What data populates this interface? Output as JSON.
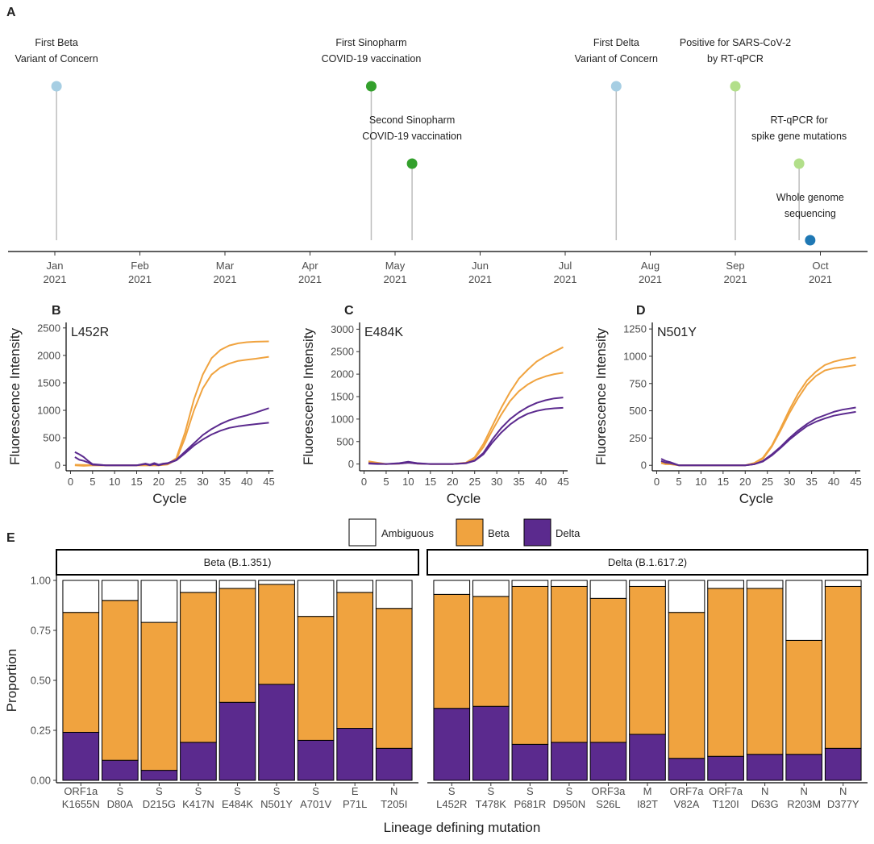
{
  "panels": {
    "a": "A",
    "b": "B",
    "c": "C",
    "d": "D",
    "e": "E"
  },
  "colors": {
    "beta": "#F0A33F",
    "delta": "#5B2A8E",
    "ambiguous": "#FFFFFF",
    "light_blue": "#A6CEE3",
    "green": "#33A02C",
    "light_green": "#B2DF8A",
    "dark_blue": "#1F78B4",
    "stem": "#BDBDBD"
  },
  "chart_data": [
    {
      "id": "timeline",
      "type": "timeline",
      "x_ticks": [
        {
          "month": 0,
          "label": [
            "Jan",
            "2021"
          ]
        },
        {
          "month": 1,
          "label": [
            "Feb",
            "2021"
          ]
        },
        {
          "month": 2,
          "label": [
            "Mar",
            "2021"
          ]
        },
        {
          "month": 3,
          "label": [
            "Apr",
            "2021"
          ]
        },
        {
          "month": 4,
          "label": [
            "May",
            "2021"
          ]
        },
        {
          "month": 5,
          "label": [
            "Jun",
            "2021"
          ]
        },
        {
          "month": 6,
          "label": [
            "Jul",
            "2021"
          ]
        },
        {
          "month": 7,
          "label": [
            "Aug",
            "2021"
          ]
        },
        {
          "month": 8,
          "label": [
            "Sep",
            "2021"
          ]
        },
        {
          "month": 9,
          "label": [
            "Oct",
            "2021"
          ]
        }
      ],
      "events": [
        {
          "month": 0.02,
          "level": 2,
          "color": "light_blue",
          "label": [
            "First Beta",
            "Variant of Concern"
          ]
        },
        {
          "month": 3.72,
          "level": 2,
          "color": "green",
          "label": [
            "First Sinopharm",
            "COVID-19 vaccination"
          ]
        },
        {
          "month": 4.2,
          "level": 1,
          "color": "green",
          "label": [
            "Second Sinopharm",
            "COVID-19 vaccination"
          ]
        },
        {
          "month": 6.6,
          "level": 2,
          "color": "light_blue",
          "label": [
            "First Delta",
            "Variant of Concern"
          ]
        },
        {
          "month": 8.0,
          "level": 2,
          "color": "light_green",
          "label": [
            "Positive for SARS-CoV-2",
            "by RT-qPCR"
          ]
        },
        {
          "month": 8.75,
          "level": 1,
          "color": "light_green",
          "label": [
            "RT-qPCR for",
            "spike gene mutations"
          ]
        },
        {
          "month": 8.88,
          "level": 0,
          "color": "dark_blue",
          "label": [
            "Whole genome",
            "sequencing"
          ]
        }
      ]
    },
    {
      "id": "l452r",
      "type": "line",
      "title": "L452R",
      "xlabel": "Cycle",
      "ylabel": "Fluorescence Intensity",
      "xlim": [
        -1,
        46
      ],
      "ylim": [
        -100,
        2600
      ],
      "xticks": [
        0,
        5,
        10,
        15,
        20,
        25,
        30,
        35,
        40,
        45
      ],
      "yticks": [
        0,
        500,
        1000,
        1500,
        2000,
        2500
      ],
      "series": [
        {
          "name": "Beta",
          "color": "beta",
          "x": [
            1,
            3,
            5,
            10,
            15,
            20,
            22,
            24,
            26,
            28,
            30,
            32,
            34,
            36,
            38,
            40,
            42,
            45
          ],
          "y": [
            10,
            5,
            0,
            0,
            0,
            0,
            20,
            130,
            600,
            1200,
            1650,
            1950,
            2100,
            2180,
            2220,
            2240,
            2250,
            2255
          ]
        },
        {
          "name": "Beta",
          "color": "beta",
          "x": [
            1,
            3,
            5,
            10,
            15,
            20,
            22,
            24,
            26,
            28,
            30,
            32,
            34,
            36,
            38,
            40,
            42,
            45
          ],
          "y": [
            0,
            -10,
            0,
            0,
            0,
            0,
            15,
            100,
            500,
            1000,
            1400,
            1650,
            1780,
            1850,
            1900,
            1920,
            1940,
            1975
          ]
        },
        {
          "name": "Delta",
          "color": "delta",
          "x": [
            1,
            2,
            3,
            4,
            5,
            8,
            12,
            15,
            17,
            18,
            19,
            20,
            21,
            22,
            24,
            26,
            28,
            30,
            32,
            34,
            36,
            38,
            40,
            42,
            45
          ],
          "y": [
            240,
            200,
            150,
            80,
            20,
            0,
            0,
            0,
            30,
            10,
            40,
            10,
            30,
            40,
            100,
            250,
            400,
            550,
            660,
            750,
            820,
            870,
            910,
            960,
            1040
          ]
        },
        {
          "name": "Delta",
          "color": "delta",
          "x": [
            1,
            2,
            3,
            4,
            5,
            8,
            12,
            15,
            17,
            18,
            19,
            20,
            21,
            22,
            24,
            26,
            28,
            30,
            32,
            34,
            36,
            38,
            40,
            42,
            45
          ],
          "y": [
            150,
            100,
            80,
            50,
            10,
            0,
            0,
            0,
            20,
            0,
            20,
            0,
            20,
            30,
            90,
            220,
            360,
            470,
            560,
            630,
            680,
            710,
            730,
            750,
            775
          ]
        }
      ]
    },
    {
      "id": "e484k",
      "type": "line",
      "title": "E484K",
      "xlabel": "Cycle",
      "ylabel": "Fluorescence Intensity",
      "xlim": [
        -1,
        46
      ],
      "ylim": [
        -150,
        3150
      ],
      "xticks": [
        0,
        5,
        10,
        15,
        20,
        25,
        30,
        35,
        40,
        45
      ],
      "yticks": [
        0,
        500,
        1000,
        1500,
        2000,
        2500,
        3000
      ],
      "series": [
        {
          "name": "Beta",
          "color": "beta",
          "x": [
            1,
            3,
            5,
            8,
            10,
            12,
            15,
            20,
            23,
            25,
            27,
            29,
            31,
            33,
            35,
            37,
            39,
            41,
            43,
            45
          ],
          "y": [
            60,
            30,
            0,
            10,
            40,
            10,
            0,
            0,
            30,
            150,
            450,
            850,
            1250,
            1600,
            1900,
            2100,
            2280,
            2400,
            2500,
            2600
          ]
        },
        {
          "name": "Beta",
          "color": "beta",
          "x": [
            1,
            3,
            5,
            8,
            10,
            12,
            15,
            20,
            23,
            25,
            27,
            29,
            31,
            33,
            35,
            37,
            39,
            41,
            43,
            45
          ],
          "y": [
            30,
            10,
            0,
            10,
            30,
            10,
            0,
            0,
            20,
            120,
            380,
            750,
            1100,
            1400,
            1620,
            1770,
            1880,
            1950,
            2000,
            2030
          ]
        },
        {
          "name": "Delta",
          "color": "delta",
          "x": [
            1,
            3,
            5,
            8,
            10,
            12,
            15,
            20,
            23,
            25,
            27,
            29,
            31,
            33,
            35,
            37,
            39,
            41,
            43,
            45
          ],
          "y": [
            20,
            10,
            0,
            20,
            50,
            20,
            0,
            0,
            20,
            80,
            250,
            550,
            800,
            1000,
            1150,
            1270,
            1360,
            1420,
            1460,
            1480
          ]
        },
        {
          "name": "Delta",
          "color": "delta",
          "x": [
            1,
            3,
            5,
            8,
            10,
            12,
            15,
            20,
            23,
            25,
            27,
            29,
            31,
            33,
            35,
            37,
            39,
            41,
            43,
            45
          ],
          "y": [
            10,
            0,
            0,
            10,
            30,
            10,
            0,
            0,
            15,
            70,
            220,
            480,
            700,
            880,
            1020,
            1120,
            1180,
            1220,
            1240,
            1250
          ]
        }
      ]
    },
    {
      "id": "n501y",
      "type": "line",
      "title": "N501Y",
      "xlabel": "Cycle",
      "ylabel": "Fluorescence Intensity",
      "xlim": [
        -1,
        46
      ],
      "ylim": [
        -50,
        1310
      ],
      "xticks": [
        0,
        5,
        10,
        15,
        20,
        25,
        30,
        35,
        40,
        45
      ],
      "yticks": [
        0,
        250,
        500,
        750,
        1000,
        1250
      ],
      "series": [
        {
          "name": "Beta",
          "color": "beta",
          "x": [
            1,
            2,
            3,
            5,
            10,
            15,
            20,
            22,
            24,
            26,
            28,
            30,
            32,
            34,
            36,
            38,
            40,
            42,
            45
          ],
          "y": [
            30,
            20,
            20,
            0,
            0,
            0,
            0,
            20,
            70,
            180,
            340,
            510,
            660,
            780,
            860,
            920,
            950,
            970,
            990
          ]
        },
        {
          "name": "Beta",
          "color": "beta",
          "x": [
            1,
            2,
            3,
            5,
            10,
            15,
            20,
            22,
            24,
            26,
            28,
            30,
            32,
            34,
            36,
            38,
            40,
            42,
            45
          ],
          "y": [
            20,
            10,
            10,
            0,
            0,
            0,
            0,
            20,
            60,
            170,
            320,
            480,
            620,
            740,
            820,
            870,
            890,
            900,
            920
          ]
        },
        {
          "name": "Delta",
          "color": "delta",
          "x": [
            1,
            2,
            3,
            5,
            10,
            15,
            20,
            22,
            24,
            26,
            28,
            30,
            32,
            34,
            36,
            38,
            40,
            42,
            45
          ],
          "y": [
            60,
            40,
            30,
            0,
            0,
            0,
            0,
            10,
            40,
            100,
            170,
            250,
            320,
            380,
            430,
            460,
            490,
            510,
            530
          ]
        },
        {
          "name": "Delta",
          "color": "delta",
          "x": [
            1,
            2,
            3,
            5,
            10,
            15,
            20,
            22,
            24,
            26,
            28,
            30,
            32,
            34,
            36,
            38,
            40,
            42,
            45
          ],
          "y": [
            40,
            25,
            20,
            0,
            0,
            0,
            0,
            10,
            35,
            90,
            160,
            235,
            300,
            360,
            400,
            430,
            455,
            470,
            490
          ]
        }
      ]
    },
    {
      "id": "lineage",
      "type": "bar",
      "stacked": true,
      "ylabel": "Proportion",
      "xlabel": "Lineage defining mutation",
      "ylim": [
        0,
        1
      ],
      "yticks": [
        0.0,
        0.25,
        0.5,
        0.75,
        1.0
      ],
      "ytick_labels": [
        "0.00",
        "0.25",
        "0.50",
        "0.75",
        "1.00"
      ],
      "legend": [
        {
          "name": "Ambiguous",
          "color": "ambiguous"
        },
        {
          "name": "Beta",
          "color": "beta"
        },
        {
          "name": "Delta",
          "color": "delta"
        }
      ],
      "facets": [
        {
          "strip": "Beta (B.1.351)",
          "categories": [
            [
              "ORF1a",
              "K1655N"
            ],
            [
              "S",
              "D80A"
            ],
            [
              "S",
              "D215G"
            ],
            [
              "S",
              "K417N"
            ],
            [
              "S",
              "E484K"
            ],
            [
              "S",
              "N501Y"
            ],
            [
              "S",
              "A701V"
            ],
            [
              "E",
              "P71L"
            ],
            [
              "N",
              "T205I"
            ]
          ],
          "delta": [
            0.24,
            0.1,
            0.05,
            0.19,
            0.39,
            0.48,
            0.2,
            0.26,
            0.16
          ],
          "beta": [
            0.6,
            0.8,
            0.74,
            0.75,
            0.57,
            0.5,
            0.62,
            0.68,
            0.7
          ],
          "ambiguous": [
            0.16,
            0.1,
            0.21,
            0.06,
            0.04,
            0.02,
            0.18,
            0.06,
            0.14
          ]
        },
        {
          "strip": "Delta (B.1.617.2)",
          "categories": [
            [
              "S",
              "L452R"
            ],
            [
              "S",
              "T478K"
            ],
            [
              "S",
              "P681R"
            ],
            [
              "S",
              "D950N"
            ],
            [
              "ORF3a",
              "S26L"
            ],
            [
              "M",
              "I82T"
            ],
            [
              "ORF7a",
              "V82A"
            ],
            [
              "ORF7a",
              "T120I"
            ],
            [
              "N",
              "D63G"
            ],
            [
              "N",
              "R203M"
            ],
            [
              "N",
              "D377Y"
            ]
          ],
          "delta": [
            0.36,
            0.37,
            0.18,
            0.19,
            0.19,
            0.23,
            0.11,
            0.12,
            0.13,
            0.13,
            0.16
          ],
          "beta": [
            0.57,
            0.55,
            0.79,
            0.78,
            0.72,
            0.74,
            0.73,
            0.84,
            0.83,
            0.57,
            0.81
          ],
          "ambiguous": [
            0.07,
            0.08,
            0.03,
            0.03,
            0.09,
            0.03,
            0.16,
            0.04,
            0.04,
            0.3,
            0.03
          ]
        }
      ]
    }
  ]
}
